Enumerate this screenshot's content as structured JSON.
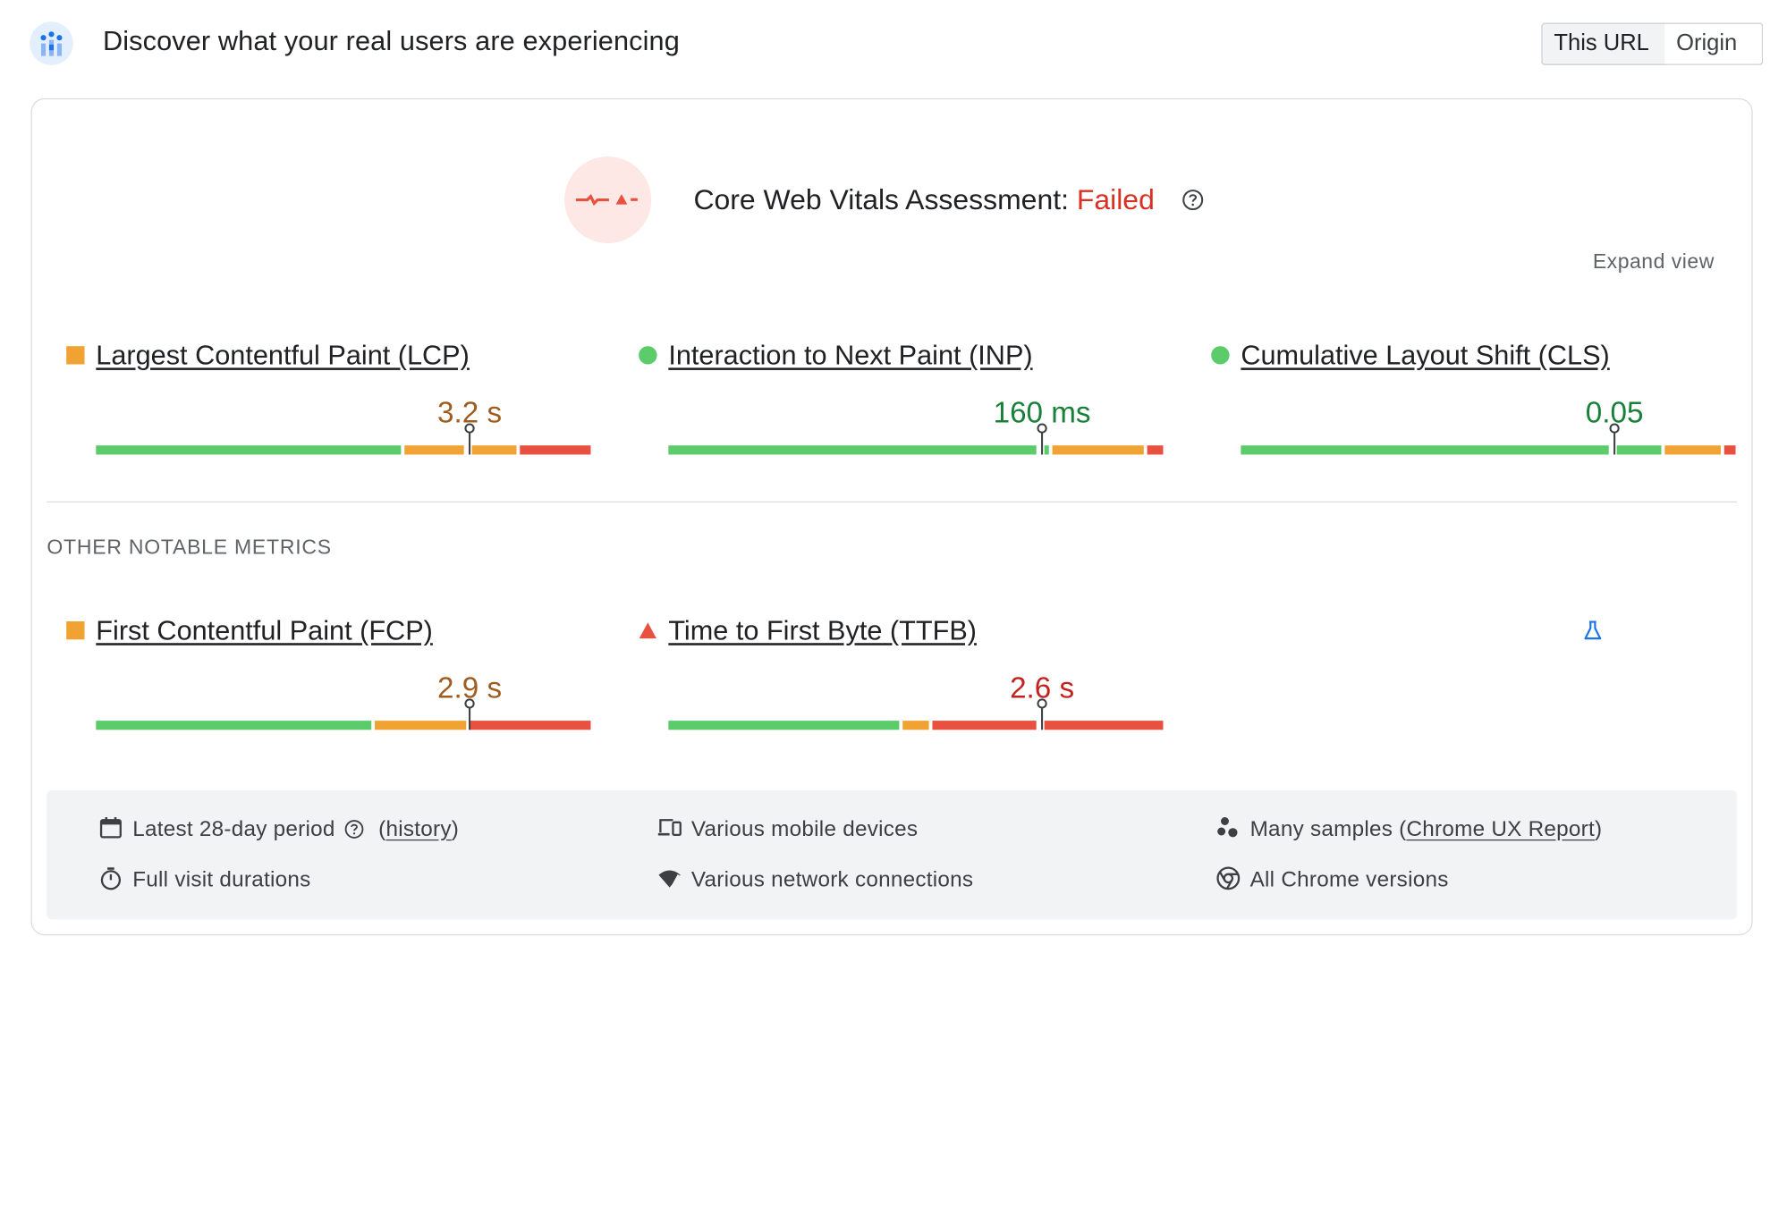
{
  "header": {
    "title": "Discover what your real users are experiencing",
    "toggle": {
      "this_url": "This URL",
      "origin": "Origin",
      "selected": "This URL"
    }
  },
  "assessment": {
    "label": "Core Web Vitals Assessment:",
    "status": "Failed",
    "expand_label": "Expand view"
  },
  "core_metrics": [
    {
      "name": "Largest Contentful Paint (LCP)",
      "value": "3.2 s",
      "rating": "needs-improvement",
      "value_color": "#a05c1e",
      "indicator": "orange-square",
      "distribution": {
        "good": 0.62,
        "needs_improvement": 0.23,
        "poor": 0.15
      },
      "marker": 0.75
    },
    {
      "name": "Interaction to Next Paint (INP)",
      "value": "160 ms",
      "rating": "good",
      "value_color": "#188038",
      "indicator": "green-circle",
      "distribution": {
        "good": 0.77,
        "needs_improvement": 0.19,
        "poor": 0.04
      },
      "marker": 0.75
    },
    {
      "name": "Cumulative Layout Shift (CLS)",
      "value": "0.05",
      "rating": "good",
      "value_color": "#188038",
      "indicator": "green-circle",
      "distribution": {
        "good": 0.85,
        "needs_improvement": 0.12,
        "poor": 0.03
      },
      "marker": 0.75
    }
  ],
  "other_section_title": "OTHER NOTABLE METRICS",
  "other_metrics": [
    {
      "name": "First Contentful Paint (FCP)",
      "value": "2.9 s",
      "rating": "needs-improvement",
      "value_color": "#a05c1e",
      "indicator": "orange-square",
      "distribution": {
        "good": 0.56,
        "needs_improvement": 0.19,
        "poor": 0.25
      },
      "marker": 0.75
    },
    {
      "name": "Time to First Byte (TTFB)",
      "value": "2.6 s",
      "rating": "poor",
      "value_color": "#c5221f",
      "indicator": "red-triangle",
      "experimental": true,
      "distribution": {
        "good": 0.47,
        "needs_improvement": 0.06,
        "poor": 0.47
      },
      "marker": 0.75
    }
  ],
  "footer": {
    "period": "Latest 28-day period",
    "history_open": "(",
    "history_link": "history",
    "history_close": ")",
    "durations": "Full visit durations",
    "devices": "Various mobile devices",
    "network": "Various network connections",
    "samples_prefix": "Many samples (",
    "samples_link": "Chrome UX Report",
    "samples_suffix": ")",
    "versions": "All Chrome versions"
  },
  "colors": {
    "good": "#5ccc6b",
    "needs_improvement": "#f0a333",
    "poor": "#e8513f",
    "failed": "#d93025",
    "link": "#202124"
  },
  "icons": {
    "header_logo": "crux-logo-icon",
    "assessment": "failed-vitals-icon",
    "help": "help-icon",
    "experimental": "flask-icon",
    "calendar": "calendar-icon",
    "timer": "timer-icon",
    "devices": "devices-icon",
    "network": "network-icon",
    "samples": "samples-icon",
    "chrome": "chrome-icon"
  }
}
